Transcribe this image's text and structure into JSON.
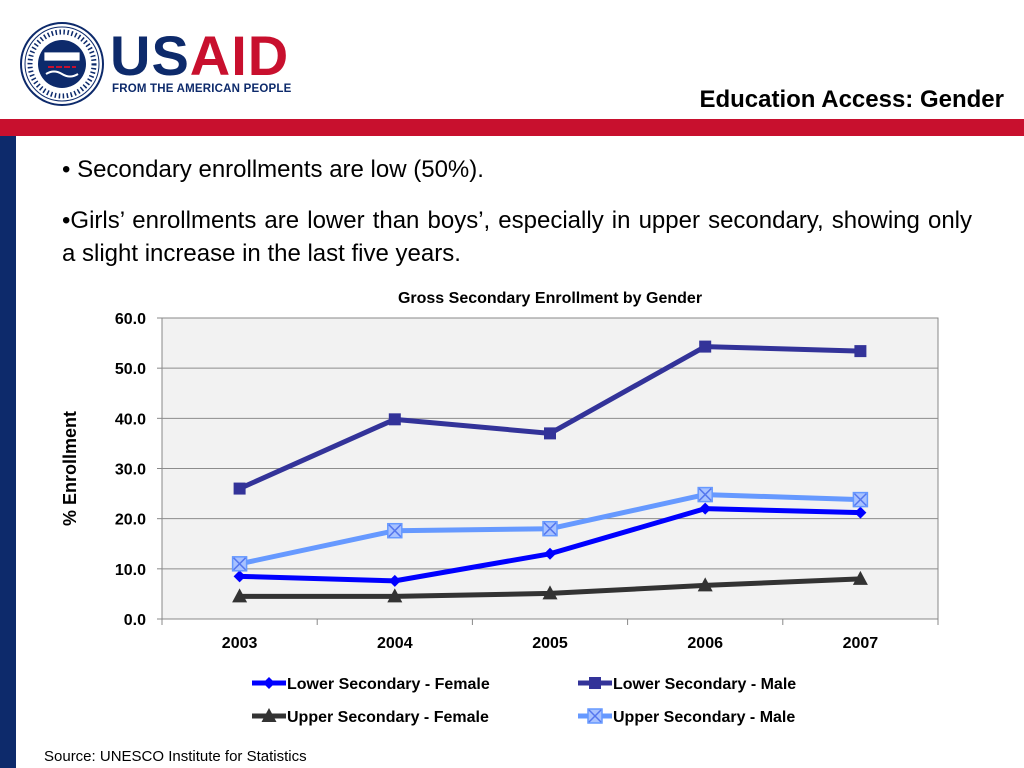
{
  "header": {
    "logo_wordmark_us": "US",
    "logo_wordmark_aid": "AID",
    "logo_tagline": "FROM THE AMERICAN PEOPLE",
    "seal_text": "UNITED STATES AGENCY FOR INTERNATIONAL DEVELOPMENT",
    "title": "Education Access: Gender"
  },
  "colors": {
    "brand_blue": "#0d2a6b",
    "brand_red": "#c8102e"
  },
  "bullets": [
    "• Secondary enrollments are low (50%).",
    "•Girls’ enrollments are lower than boys’, especially in upper secondary, showing only a slight increase in the last five years."
  ],
  "source": "Source: UNESCO Institute for Statistics",
  "chart_data": {
    "type": "line",
    "title": "Gross Secondary Enrollment by Gender",
    "xlabel": "",
    "ylabel": "% Enrollment",
    "categories": [
      "2003",
      "2004",
      "2005",
      "2006",
      "2007"
    ],
    "ylim": [
      0,
      60
    ],
    "yticks": [
      "0.0",
      "10.0",
      "20.0",
      "30.0",
      "40.0",
      "50.0",
      "60.0"
    ],
    "grid": true,
    "legend_position": "bottom",
    "series": [
      {
        "name": "Lower Secondary - Female",
        "values": [
          8.5,
          7.6,
          13.0,
          22.0,
          21.2
        ],
        "color": "#0000ff",
        "marker": "diamond"
      },
      {
        "name": "Lower Secondary - Male",
        "values": [
          26.0,
          39.8,
          37.0,
          54.3,
          53.4
        ],
        "color": "#333399",
        "marker": "square"
      },
      {
        "name": "Upper Secondary - Female",
        "values": [
          4.5,
          4.5,
          5.1,
          6.7,
          8.0
        ],
        "color": "#333333",
        "marker": "triangle"
      },
      {
        "name": "Upper Secondary - Male",
        "values": [
          11.0,
          17.6,
          18.0,
          24.8,
          23.8
        ],
        "color": "#6699ff",
        "marker": "x-square"
      }
    ]
  }
}
